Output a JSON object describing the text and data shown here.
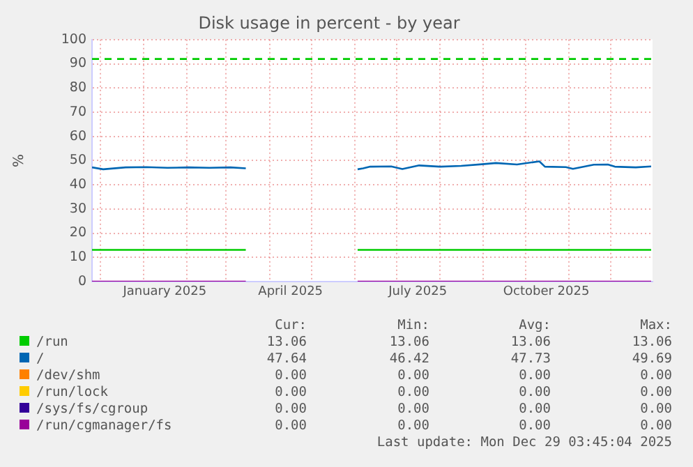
{
  "chart_data": {
    "type": "line",
    "title": "Disk usage in percent - by year",
    "ylabel": "%",
    "x": [
      "2024-11-25",
      "2024-12-03",
      "2024-12-19",
      "2025-01-03",
      "2025-01-18",
      "2025-02-02",
      "2025-02-17",
      "2025-03-04",
      "2025-03-15",
      "2025-04-20",
      "2025-06-03",
      "2025-06-07",
      "2025-06-12",
      "2025-06-27",
      "2025-07-05",
      "2025-07-17",
      "2025-08-01",
      "2025-08-16",
      "2025-08-31",
      "2025-09-10",
      "2025-09-25",
      "2025-10-11",
      "2025-10-15",
      "2025-10-30",
      "2025-11-04",
      "2025-11-19",
      "2025-11-29",
      "2025-12-04",
      "2025-12-19",
      "2025-12-30"
    ],
    "series": [
      {
        "name": "/run",
        "color": "#00cc00",
        "values": [
          13.1,
          13.1,
          13.1,
          13.1,
          13.1,
          13.1,
          13.1,
          13.1,
          13.1,
          null,
          13.1,
          13.1,
          13.1,
          13.1,
          13.1,
          13.1,
          13.1,
          13.1,
          13.1,
          13.1,
          13.1,
          13.1,
          13.1,
          13.1,
          13.1,
          13.1,
          13.1,
          13.1,
          13.1,
          13.1
        ]
      },
      {
        "name": "/",
        "color": "#0066b3",
        "values": [
          47.2,
          46.4,
          47.2,
          47.3,
          47.0,
          47.2,
          47.0,
          47.2,
          46.8,
          null,
          46.4,
          46.8,
          47.5,
          47.6,
          46.5,
          48.0,
          47.5,
          47.8,
          48.5,
          49.0,
          48.4,
          49.7,
          47.5,
          47.3,
          46.6,
          48.3,
          48.4,
          47.5,
          47.2,
          47.6
        ]
      },
      {
        "name": "/dev/shm",
        "color": "#ff8000",
        "values": [
          null,
          null,
          null,
          null,
          null,
          null,
          null,
          null,
          null,
          null,
          null,
          null,
          null,
          null,
          null,
          null,
          null,
          null,
          null,
          null,
          null,
          null,
          null,
          null,
          null,
          null,
          null,
          null,
          null,
          null
        ]
      },
      {
        "name": "/run/lock",
        "color": "#ffcc00",
        "values": [
          null,
          null,
          null,
          null,
          null,
          null,
          null,
          null,
          null,
          null,
          null,
          null,
          null,
          null,
          null,
          null,
          null,
          null,
          null,
          null,
          null,
          null,
          null,
          null,
          null,
          null,
          null,
          null,
          null,
          null
        ]
      },
      {
        "name": "/sys/fs/cgroup",
        "color": "#330099",
        "values": [
          null,
          null,
          null,
          null,
          null,
          null,
          null,
          null,
          null,
          null,
          null,
          null,
          null,
          null,
          null,
          null,
          null,
          null,
          null,
          null,
          null,
          null,
          null,
          null,
          null,
          null,
          null,
          null,
          null,
          null
        ]
      },
      {
        "name": "/run/cgmanager/fs",
        "color": "#990099",
        "values": [
          0,
          0,
          0,
          0,
          0,
          0,
          0,
          0,
          0,
          null,
          0,
          0,
          0,
          0,
          0,
          0,
          0,
          0,
          0,
          0,
          0,
          0,
          0,
          0,
          0,
          0,
          0,
          0,
          0,
          0
        ]
      }
    ],
    "xlim": [
      "2024-11-25",
      "2025-12-31"
    ],
    "xticks": [
      {
        "value": "2024-12-01",
        "label": null
      },
      {
        "value": "2025-01-01",
        "label": null
      },
      {
        "value": "2025-01-16",
        "label": "January 2025"
      },
      {
        "value": "2025-02-01",
        "label": null
      },
      {
        "value": "2025-03-01",
        "label": null
      },
      {
        "value": "2025-04-01",
        "label": null
      },
      {
        "value": "2025-04-16",
        "label": "April 2025"
      },
      {
        "value": "2025-05-01",
        "label": null
      },
      {
        "value": "2025-06-01",
        "label": null
      },
      {
        "value": "2025-07-01",
        "label": null
      },
      {
        "value": "2025-07-16",
        "label": "July 2025"
      },
      {
        "value": "2025-08-01",
        "label": null
      },
      {
        "value": "2025-09-01",
        "label": null
      },
      {
        "value": "2025-10-01",
        "label": null
      },
      {
        "value": "2025-10-16",
        "label": "October 2025"
      },
      {
        "value": "2025-11-01",
        "label": null
      },
      {
        "value": "2025-12-01",
        "label": null
      }
    ],
    "ylim": [
      0,
      100
    ],
    "yticks": [
      0,
      10,
      20,
      30,
      40,
      50,
      60,
      70,
      80,
      90,
      100
    ],
    "ref_lines": [
      {
        "axis": "y",
        "value": 92,
        "color": "#00cc00",
        "line_style": "dashed"
      }
    ],
    "grid": true,
    "legend": "bottom",
    "marker": "none",
    "line_style": "solid",
    "annotations": [
      "Cur:",
      "Min:",
      "Avg:",
      "Max:",
      "13.06",
      "13.06",
      "13.06",
      "13.06",
      "47.64",
      "46.42",
      "47.73",
      "49.69",
      "0.00",
      "0.00",
      "0.00",
      "0.00",
      "0.00",
      "0.00",
      "0.00",
      "0.00",
      "0.00",
      "0.00",
      "0.00",
      "0.00",
      "0.00",
      "0.00",
      "0.00",
      "0.00",
      "Last update: Mon Dec 29 03:45:04 2025"
    ]
  }
}
